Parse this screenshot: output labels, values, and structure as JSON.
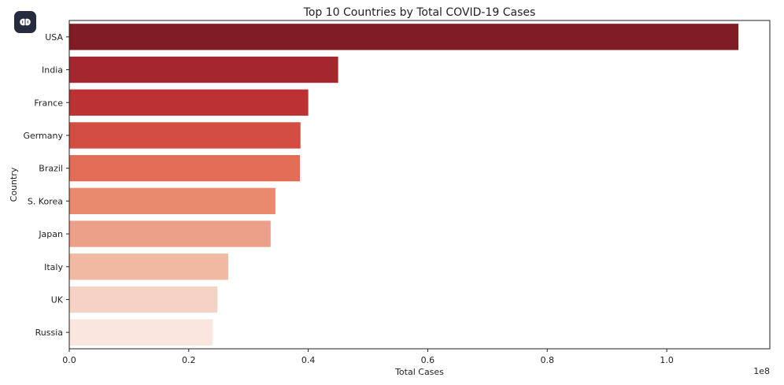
{
  "app_icon": "brain-icon",
  "chart_data": {
    "type": "bar",
    "orientation": "horizontal",
    "title": "Top 10 Countries by Total COVID-19 Cases",
    "xlabel": "Total Cases",
    "ylabel": "Country",
    "x_offset_label": "1e8",
    "xlim": [
      0,
      1.1725
    ],
    "x_ticks": [
      0.0,
      0.2,
      0.4,
      0.6,
      0.8,
      1.0
    ],
    "x_tick_labels": [
      "0.0",
      "0.2",
      "0.4",
      "0.6",
      "0.8",
      "1.0"
    ],
    "categories": [
      "USA",
      "India",
      "France",
      "Germany",
      "Brazil",
      "S. Korea",
      "Japan",
      "Italy",
      "UK",
      "Russia"
    ],
    "values": [
      1.12,
      0.45,
      0.4,
      0.387,
      0.386,
      0.345,
      0.337,
      0.266,
      0.248,
      0.24
    ],
    "colors": [
      "#7f1c24",
      "#a3272d",
      "#bc3134",
      "#d44d42",
      "#e26c56",
      "#e9896e",
      "#eda089",
      "#f1b8a2",
      "#f5d2c4",
      "#fae6df"
    ],
    "grid": false,
    "legend": "none"
  }
}
